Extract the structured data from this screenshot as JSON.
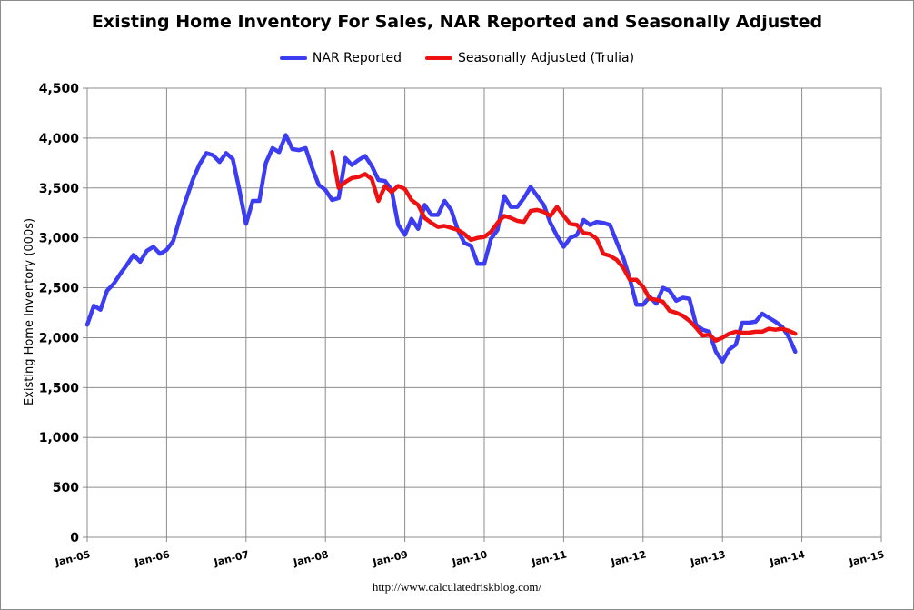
{
  "chart_data": {
    "type": "line",
    "title": "Existing Home Inventory For Sales, NAR Reported and Seasonally Adjusted",
    "ylabel": "Existing Home Inventory (000s)",
    "xlabel": "",
    "ylim": [
      0,
      4500
    ],
    "y_ticks": [
      "0",
      "500",
      "1,000",
      "1,500",
      "2,000",
      "2,500",
      "3,000",
      "3,500",
      "4,000",
      "4,500"
    ],
    "x_ticks": [
      "Jan-05",
      "Jan-06",
      "Jan-07",
      "Jan-08",
      "Jan-09",
      "Jan-10",
      "Jan-11",
      "Jan-12",
      "Jan-13",
      "Jan-14",
      "Jan-15"
    ],
    "xlim": [
      "2005-01",
      "2015-01"
    ],
    "grid": true,
    "legend_position": "top",
    "source": "http://www.calculatedriskblog.com/",
    "series": [
      {
        "name": "NAR Reported",
        "color": "#3c3cf0",
        "start": "2005-01",
        "values": [
          2130,
          2320,
          2280,
          2470,
          2540,
          2640,
          2730,
          2830,
          2760,
          2870,
          2910,
          2840,
          2880,
          2970,
          3200,
          3400,
          3590,
          3740,
          3850,
          3830,
          3760,
          3850,
          3790,
          3480,
          3140,
          3370,
          3370,
          3750,
          3900,
          3860,
          4030,
          3890,
          3880,
          3900,
          3700,
          3530,
          3480,
          3380,
          3400,
          3800,
          3730,
          3780,
          3820,
          3720,
          3580,
          3570,
          3480,
          3130,
          3030,
          3190,
          3090,
          3330,
          3230,
          3230,
          3370,
          3280,
          3080,
          2950,
          2920,
          2740,
          2740,
          2990,
          3080,
          3420,
          3310,
          3310,
          3400,
          3510,
          3420,
          3330,
          3150,
          3020,
          2910,
          3000,
          3030,
          3180,
          3130,
          3160,
          3150,
          3130,
          2960,
          2800,
          2590,
          2330,
          2330,
          2410,
          2340,
          2500,
          2470,
          2370,
          2400,
          2390,
          2130,
          2080,
          2060,
          1860,
          1760,
          1880,
          1930,
          2150,
          2150,
          2160,
          2240,
          2200,
          2160,
          2110,
          2010,
          1860
        ]
      },
      {
        "name": "Seasonally Adjusted (Trulia)",
        "color": "#ee1111",
        "start": "2008-02",
        "values": [
          3860,
          3500,
          3560,
          3600,
          3610,
          3640,
          3590,
          3370,
          3520,
          3460,
          3520,
          3490,
          3380,
          3330,
          3200,
          3150,
          3110,
          3120,
          3100,
          3080,
          3040,
          2980,
          3000,
          3010,
          3060,
          3150,
          3220,
          3200,
          3170,
          3160,
          3270,
          3280,
          3260,
          3220,
          3310,
          3220,
          3140,
          3130,
          3050,
          3040,
          2990,
          2840,
          2820,
          2780,
          2700,
          2580,
          2580,
          2510,
          2390,
          2380,
          2360,
          2270,
          2250,
          2220,
          2170,
          2100,
          2020,
          2030,
          1970,
          2000,
          2040,
          2060,
          2050,
          2050,
          2060,
          2060,
          2090,
          2080,
          2090,
          2070,
          2040
        ]
      }
    ]
  }
}
